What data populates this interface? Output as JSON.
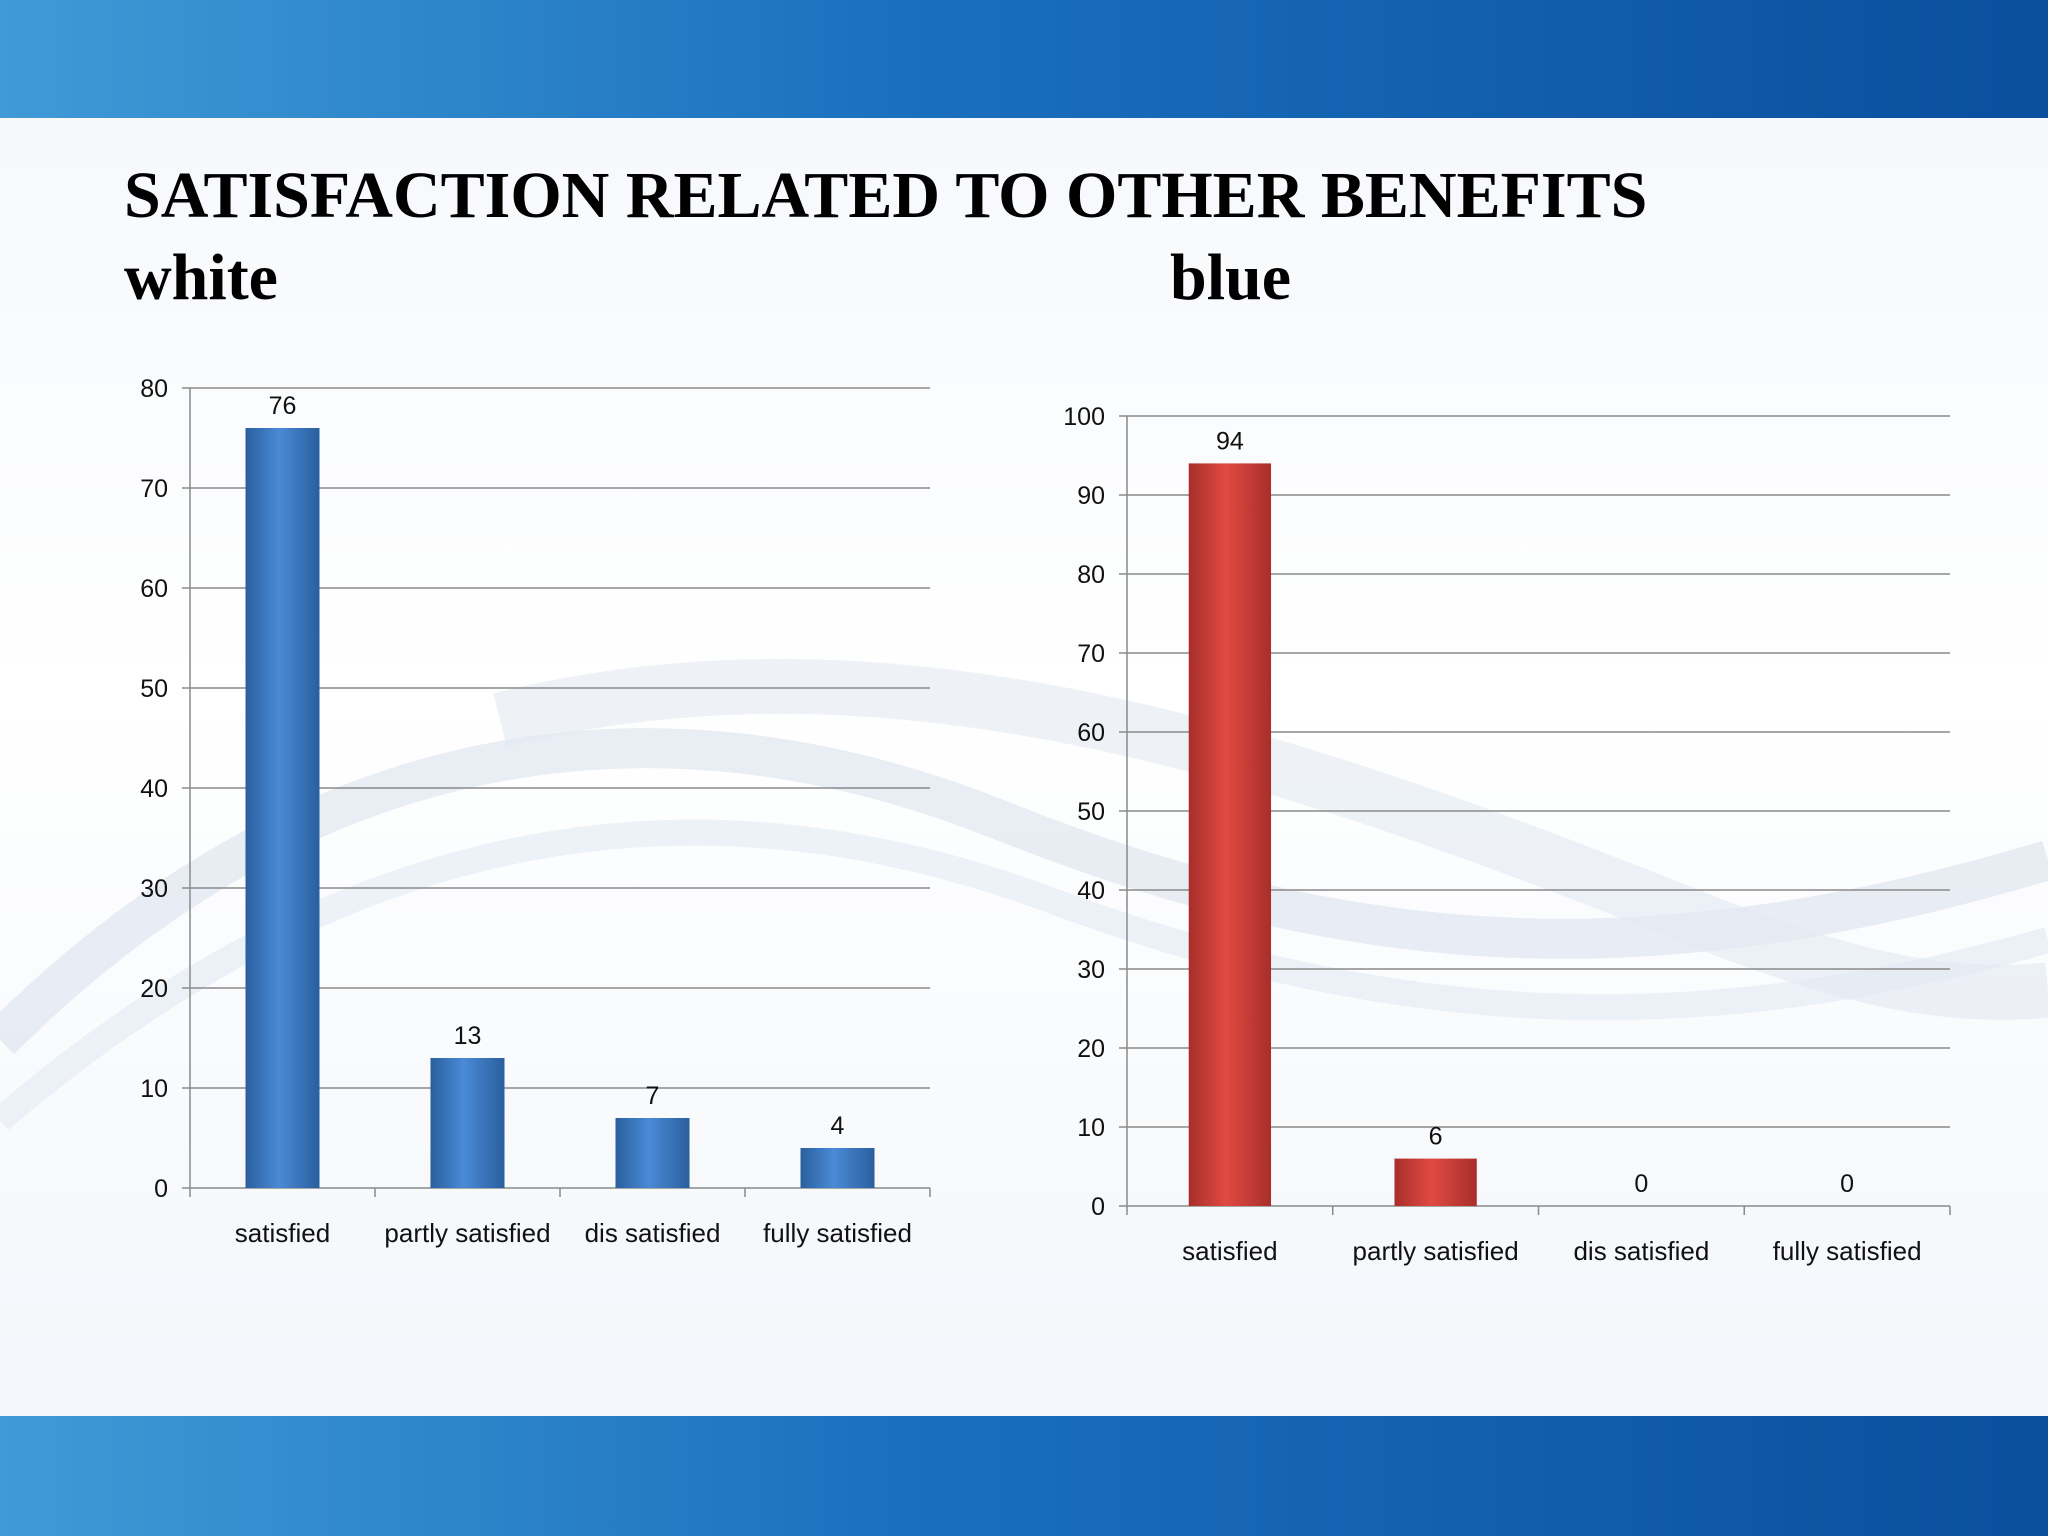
{
  "slide": {
    "title": "SATISFACTION RELATED TO OTHER BENEFITS",
    "subtitle_left": "white",
    "subtitle_right": "blue",
    "colors": {
      "band": "#1a6fbd",
      "white_bars": "#3a78c2",
      "blue_bars": "#d8403a"
    }
  },
  "chart_data": [
    {
      "type": "bar",
      "categories": [
        "satisfied",
        "partly satisfied",
        "dis satisfied",
        "fully satisfied"
      ],
      "values": [
        76,
        13,
        7,
        4
      ],
      "data_labels": [
        "76",
        "13",
        "7",
        "4"
      ],
      "yticks": [
        "0",
        "10",
        "20",
        "30",
        "40",
        "50",
        "60",
        "70",
        "80"
      ],
      "ylim": [
        0,
        80
      ],
      "ytick_step": 10,
      "grid": true,
      "legend": "none",
      "bar_color": "#3a78c2"
    },
    {
      "type": "bar",
      "categories": [
        "satisfied",
        "partly satisfied",
        "dis satisfied",
        "fully satisfied"
      ],
      "values": [
        94,
        6,
        0,
        0
      ],
      "data_labels": [
        "94",
        "6",
        "0",
        "0"
      ],
      "yticks": [
        "0",
        "10",
        "20",
        "30",
        "40",
        "50",
        "60",
        "70",
        "80",
        "90",
        "100"
      ],
      "ylim": [
        0,
        100
      ],
      "ytick_step": 10,
      "grid": true,
      "legend": "none",
      "bar_color": "#d8403a"
    }
  ]
}
